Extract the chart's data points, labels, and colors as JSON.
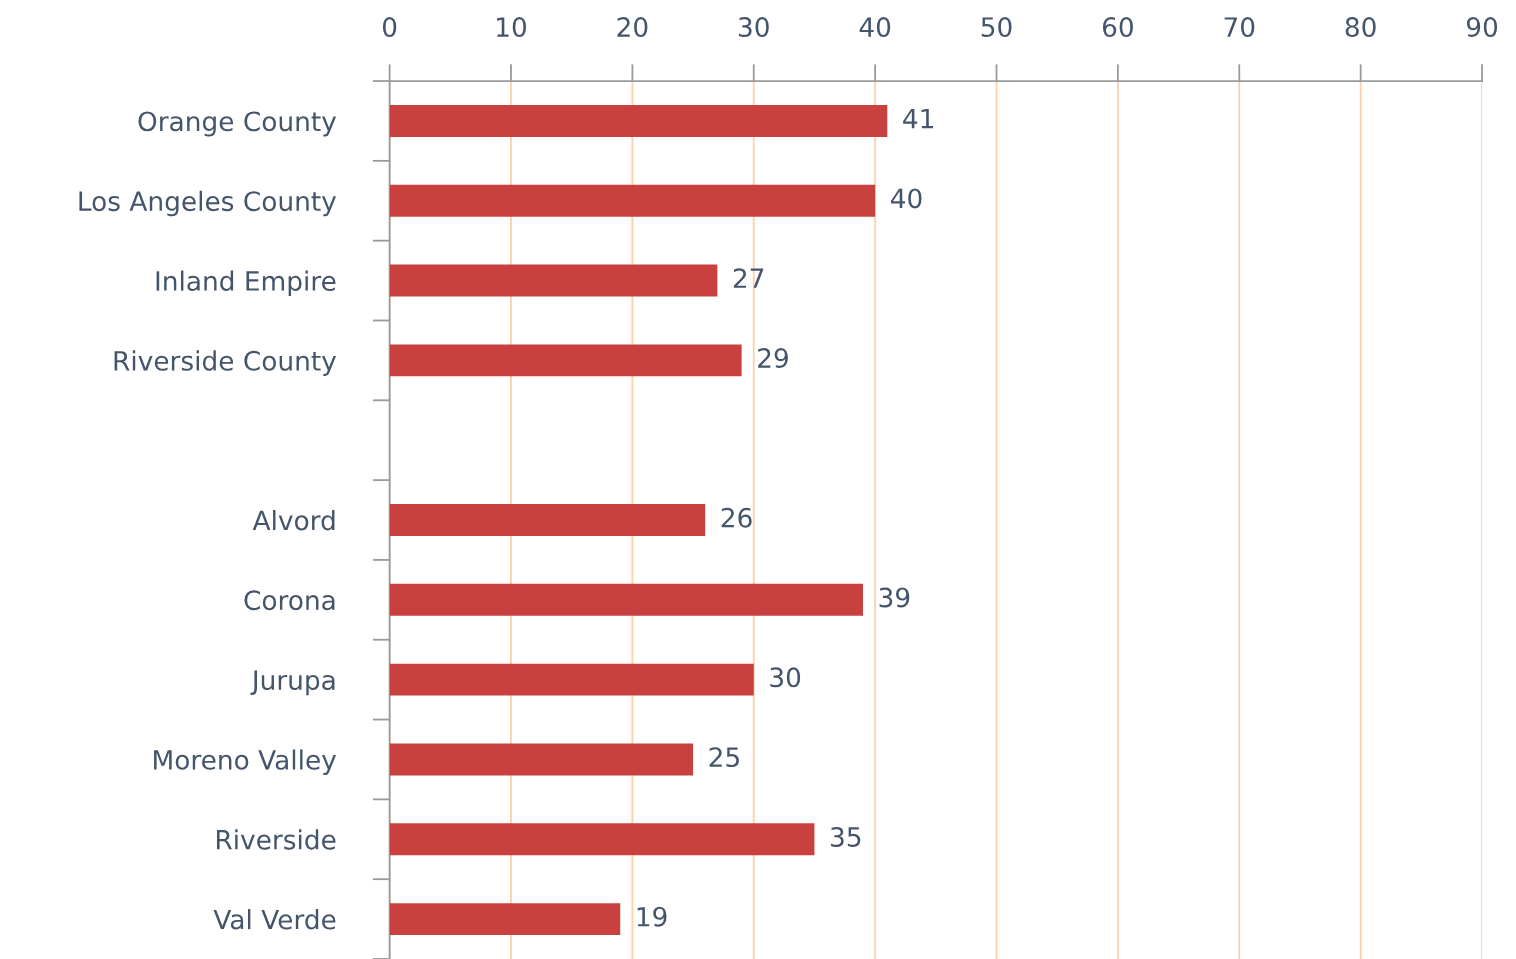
{
  "chart_data": {
    "type": "bar",
    "orientation": "horizontal",
    "categories": [
      "Orange County",
      "Los Angeles County",
      "Inland Empire",
      "Riverside County",
      null,
      "Alvord",
      "Corona",
      "Jurupa",
      "Moreno Valley",
      "Riverside",
      "Val Verde"
    ],
    "values": [
      41,
      40,
      27,
      29,
      null,
      26,
      39,
      30,
      25,
      35,
      19
    ],
    "color": "#c9413f",
    "xlim": [
      0,
      90
    ],
    "xticks": [
      0,
      10,
      20,
      30,
      40,
      50,
      60,
      70,
      80,
      90
    ],
    "grid": "x",
    "data_labels": true
  }
}
